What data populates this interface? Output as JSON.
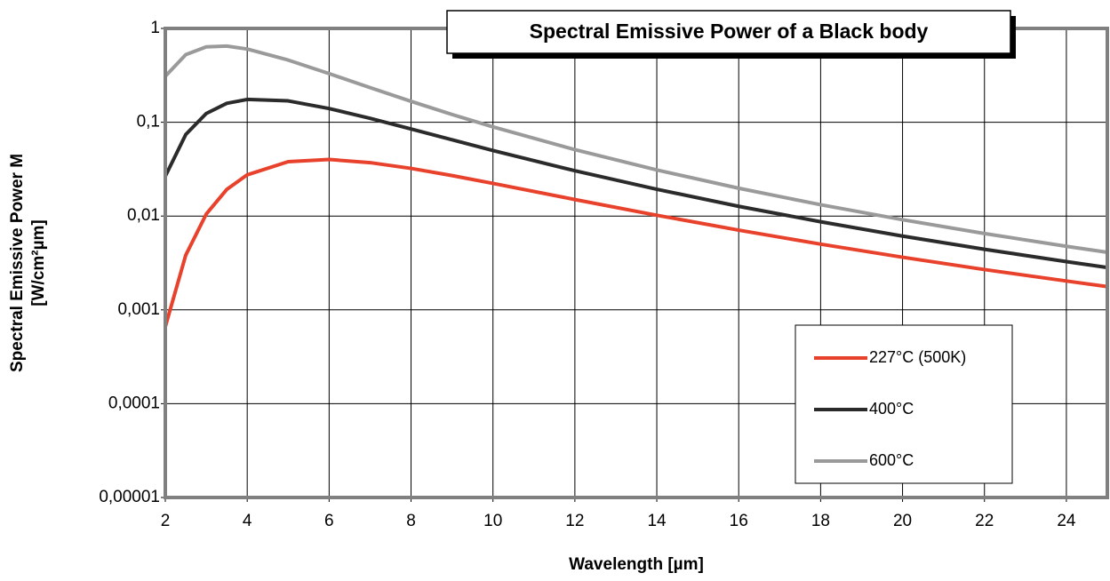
{
  "chart_data": {
    "type": "line",
    "title": "Spectral Emissive Power of a Black body",
    "y_label": [
      "Spectral Emissive Power M",
      "[W/cm²µm]"
    ],
    "x_label": "Wavelength [µm]",
    "x": [
      2,
      2.5,
      3,
      3.5,
      4,
      5,
      6,
      7,
      8,
      9,
      10,
      12,
      14,
      16,
      18,
      20,
      22,
      24,
      25
    ],
    "series": [
      {
        "name": "227°C (500K)",
        "color": "#e8412c",
        "values": [
          0.00066,
          0.00384,
          0.0105,
          0.0192,
          0.0275,
          0.038,
          0.0401,
          0.0371,
          0.0322,
          0.027,
          0.0223,
          0.015,
          0.0102,
          0.00708,
          0.00502,
          0.00364,
          0.00269,
          0.00203,
          0.00177
        ]
      },
      {
        "name": "400°C",
        "color": "#2b2b2b",
        "values": [
          0.0266,
          0.074,
          0.124,
          0.159,
          0.175,
          0.169,
          0.14,
          0.11,
          0.0848,
          0.065,
          0.05,
          0.0304,
          0.0193,
          0.0127,
          0.00869,
          0.00612,
          0.00442,
          0.00327,
          0.00283
        ]
      },
      {
        "name": "600°C",
        "color": "#9a9a9a",
        "values": [
          0.309,
          0.526,
          0.636,
          0.648,
          0.603,
          0.46,
          0.33,
          0.234,
          0.167,
          0.121,
          0.0892,
          0.051,
          0.031,
          0.0198,
          0.0132,
          0.00914,
          0.00651,
          0.00476,
          0.00411
        ]
      }
    ],
    "xlim": [
      2,
      25
    ],
    "xticks": [
      2,
      4,
      6,
      8,
      10,
      12,
      14,
      16,
      18,
      20,
      22,
      24
    ],
    "ylim": [
      1e-05,
      1
    ],
    "yticks": [
      {
        "value": 1e-05,
        "label": "0,00001"
      },
      {
        "value": 0.0001,
        "label": "0,0001"
      },
      {
        "value": 0.001,
        "label": "0,001"
      },
      {
        "value": 0.01,
        "label": "0,01"
      },
      {
        "value": 0.1,
        "label": "0,1"
      },
      1
    ],
    "log_y": true,
    "grid": true,
    "legend": "lower right"
  }
}
